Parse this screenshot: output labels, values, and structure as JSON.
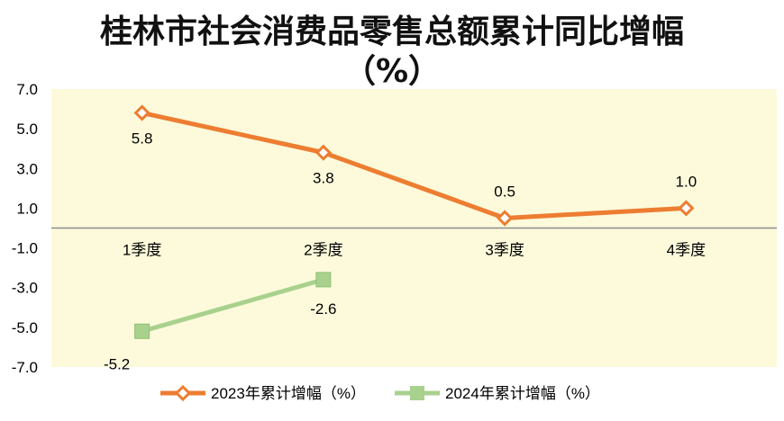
{
  "chart_data": {
    "type": "line",
    "title": "桂林市社会消费品零售总额累计同比增幅",
    "subtitle": "（%）",
    "categories": [
      "1季度",
      "2季度",
      "3季度",
      "4季度"
    ],
    "y_ticks": [
      "7.0",
      "5.0",
      "3.0",
      "1.0",
      "-1.0",
      "-3.0",
      "-5.0",
      "-7.0"
    ],
    "ylim": [
      -7,
      7
    ],
    "grid": false,
    "legend_position": "bottom",
    "plot_background": "#fcfadb",
    "series": [
      {
        "name": "2023年累计增幅（%）",
        "values": [
          5.8,
          3.8,
          0.5,
          1.0
        ],
        "labels": [
          "5.8",
          "3.8",
          "0.5",
          "1.0"
        ],
        "color": "#ed7d31",
        "marker": "diamond"
      },
      {
        "name": "2024年累计增幅（%）",
        "values": [
          -5.2,
          -2.6,
          null,
          null
        ],
        "labels": [
          "-5.2",
          "-2.6",
          "",
          ""
        ],
        "color": "#a9d18e",
        "marker": "square"
      }
    ]
  }
}
